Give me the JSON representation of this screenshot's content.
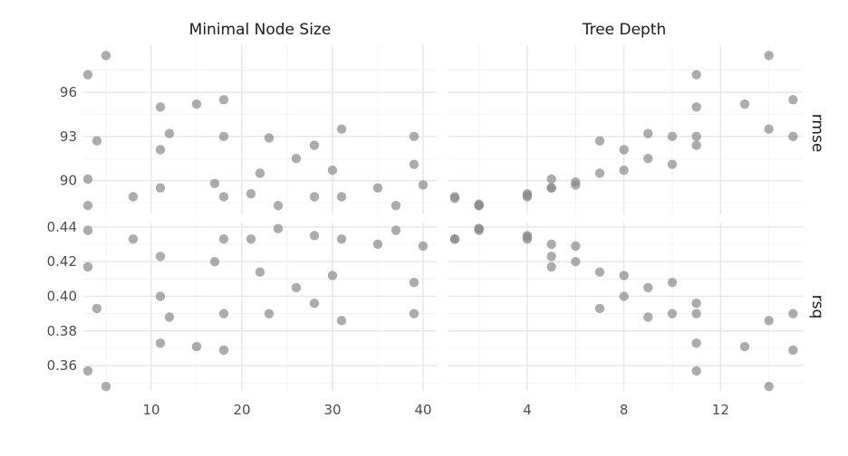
{
  "chart_data": {
    "type": "scatter",
    "color": "#8c8c8c",
    "facet_columns": [
      "Minimal Node Size",
      "Tree Depth"
    ],
    "facet_rows": [
      "rmse",
      "rsq"
    ],
    "panels": [
      {
        "col": "Minimal Node Size",
        "row": "rmse",
        "xlim": [
          2.5,
          41.5
        ],
        "ylim": [
          87.7,
          99.2
        ],
        "xticks": [
          10,
          20,
          30,
          40
        ],
        "yticks": [
          90,
          93,
          96
        ],
        "x": [
          3,
          5,
          3,
          4,
          3,
          8,
          11,
          11,
          12,
          11,
          15,
          18,
          17,
          18,
          18,
          21,
          22,
          23,
          24,
          26,
          28,
          28,
          30,
          31,
          31,
          35,
          37,
          39,
          39,
          40
        ],
        "y": [
          97.2,
          98.5,
          90.1,
          92.7,
          88.3,
          88.9,
          95.0,
          92.1,
          93.2,
          89.5,
          95.2,
          95.5,
          89.8,
          93.0,
          88.9,
          89.1,
          90.5,
          92.9,
          88.3,
          91.5,
          88.9,
          92.4,
          90.7,
          93.5,
          88.9,
          89.5,
          88.3,
          93.0,
          91.1,
          89.7
        ]
      },
      {
        "col": "Tree Depth",
        "row": "rmse",
        "xlim": [
          0.7,
          15.4
        ],
        "ylim": [
          87.7,
          99.2
        ],
        "xticks": [
          4,
          8,
          12
        ],
        "yticks": [
          90,
          93,
          96
        ],
        "x": [
          1,
          1,
          2,
          2,
          2,
          4,
          4,
          4,
          5,
          5,
          5,
          6,
          6,
          7,
          7,
          8,
          8,
          9,
          9,
          10,
          10,
          11,
          11,
          11,
          11,
          13,
          14,
          14,
          15,
          15
        ],
        "y": [
          88.8,
          88.9,
          88.3,
          88.4,
          88.3,
          89.0,
          89.1,
          88.9,
          90.1,
          89.5,
          89.5,
          89.9,
          89.7,
          92.7,
          90.5,
          92.1,
          90.7,
          93.2,
          91.5,
          93.0,
          91.1,
          97.2,
          95.0,
          93.0,
          92.4,
          95.2,
          98.5,
          93.5,
          95.5,
          93.0
        ]
      },
      {
        "col": "Minimal Node Size",
        "row": "rsq",
        "xlim": [
          2.5,
          41.5
        ],
        "ylim": [
          0.3455,
          0.4425
        ],
        "xticks": [
          10,
          20,
          30,
          40
        ],
        "yticks": [
          0.36,
          0.38,
          0.4,
          0.42,
          0.44
        ],
        "ytick_labels": [
          "0.36",
          "0.38",
          "0.40",
          "0.42",
          "0.44"
        ],
        "x": [
          3,
          3,
          3,
          4,
          5,
          8,
          11,
          11,
          11,
          12,
          15,
          17,
          18,
          18,
          18,
          21,
          22,
          23,
          24,
          26,
          28,
          28,
          30,
          31,
          31,
          35,
          37,
          39,
          39,
          40
        ],
        "y": [
          0.438,
          0.417,
          0.357,
          0.393,
          0.348,
          0.433,
          0.423,
          0.4,
          0.373,
          0.388,
          0.371,
          0.42,
          0.433,
          0.39,
          0.369,
          0.433,
          0.414,
          0.39,
          0.439,
          0.405,
          0.435,
          0.396,
          0.412,
          0.433,
          0.386,
          0.43,
          0.438,
          0.408,
          0.39,
          0.429
        ]
      },
      {
        "col": "Tree Depth",
        "row": "rsq",
        "xlim": [
          0.7,
          15.4
        ],
        "ylim": [
          0.3455,
          0.4425
        ],
        "xticks": [
          4,
          8,
          12
        ],
        "yticks": [
          0.36,
          0.38,
          0.4,
          0.42,
          0.44
        ],
        "x": [
          1,
          1,
          2,
          2,
          2,
          4,
          4,
          4,
          5,
          5,
          5,
          6,
          6,
          7,
          7,
          8,
          8,
          9,
          9,
          10,
          10,
          11,
          11,
          11,
          11,
          13,
          14,
          14,
          15,
          15
        ],
        "y": [
          0.433,
          0.433,
          0.439,
          0.438,
          0.439,
          0.435,
          0.433,
          0.434,
          0.43,
          0.423,
          0.417,
          0.429,
          0.42,
          0.393,
          0.414,
          0.412,
          0.4,
          0.405,
          0.388,
          0.408,
          0.39,
          0.396,
          0.39,
          0.373,
          0.357,
          0.371,
          0.386,
          0.348,
          0.39,
          0.369
        ]
      }
    ]
  }
}
